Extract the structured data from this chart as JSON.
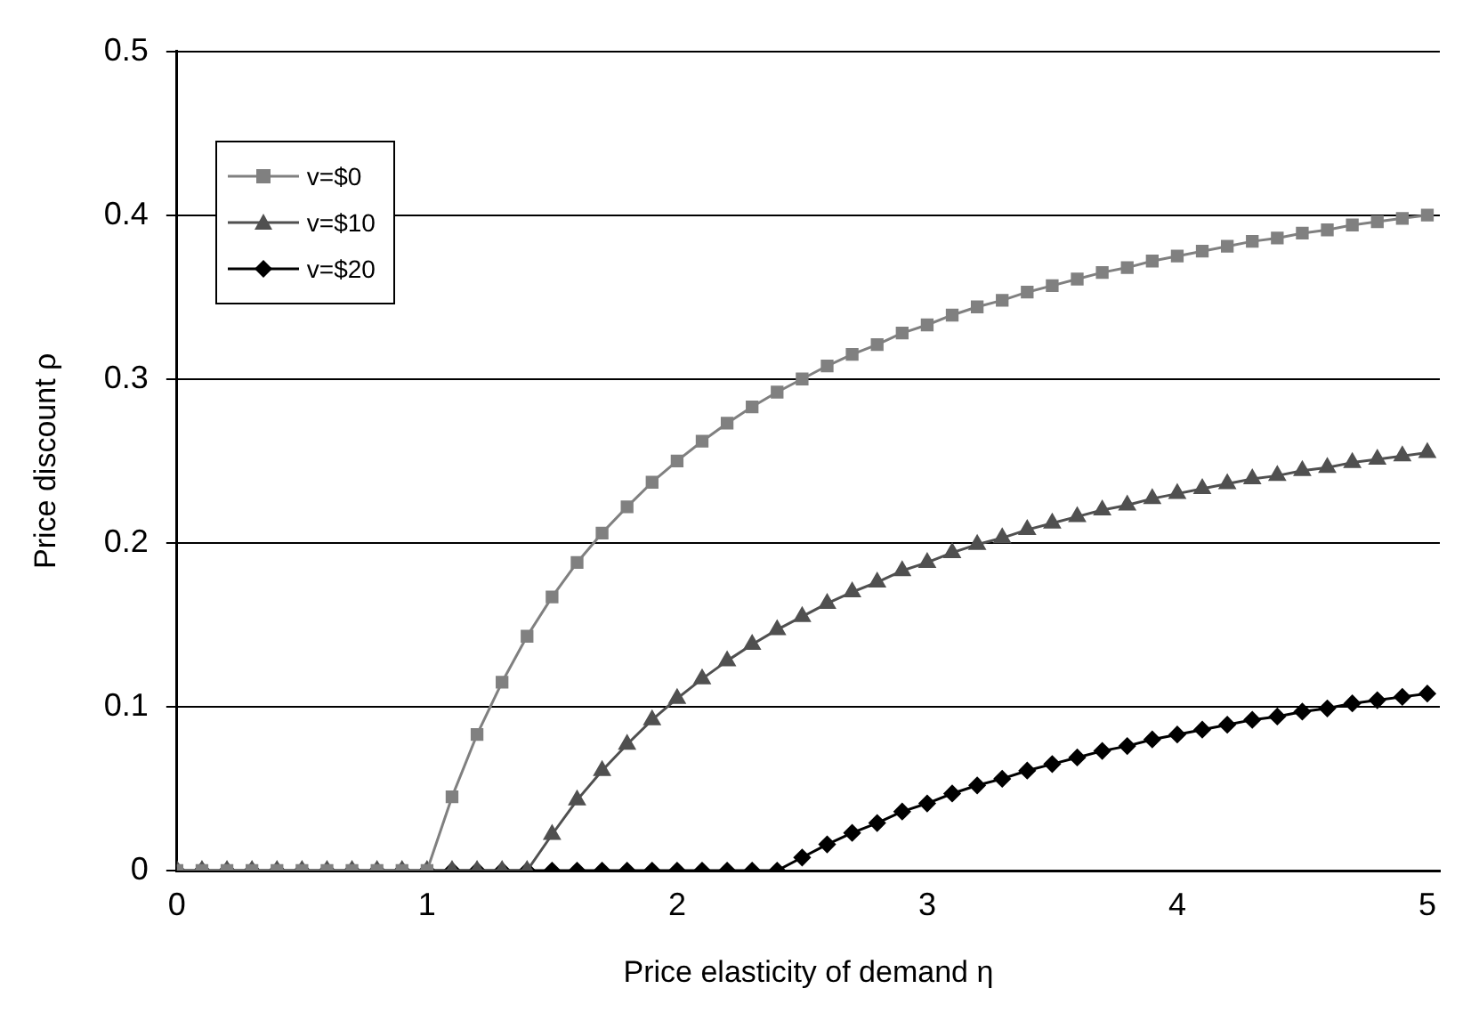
{
  "chart_data": {
    "type": "line",
    "xlabel": "Price elasticity of demand η",
    "ylabel": "Price discount ρ",
    "x": [
      0,
      0.1,
      0.2,
      0.3,
      0.4,
      0.5,
      0.6,
      0.7,
      0.8,
      0.9,
      1,
      1.1,
      1.2,
      1.3,
      1.4,
      1.5,
      1.6,
      1.7,
      1.8,
      1.9,
      2,
      2.1,
      2.2,
      2.3,
      2.4,
      2.5,
      2.6,
      2.7,
      2.8,
      2.9,
      3,
      3.1,
      3.2,
      3.3,
      3.4,
      3.5,
      3.6,
      3.7,
      3.8,
      3.9,
      4,
      4.1,
      4.2,
      4.3,
      4.4,
      4.5,
      4.6,
      4.7,
      4.8,
      4.9,
      5
    ],
    "series": [
      {
        "name": "v=$0",
        "color": "#808080",
        "marker": "square",
        "values": [
          0,
          0,
          0,
          0,
          0,
          0,
          0,
          0,
          0,
          0,
          0,
          0.045,
          0.083,
          0.115,
          0.143,
          0.167,
          0.188,
          0.206,
          0.222,
          0.237,
          0.25,
          0.262,
          0.273,
          0.283,
          0.292,
          0.3,
          0.308,
          0.315,
          0.321,
          0.328,
          0.333,
          0.339,
          0.344,
          0.348,
          0.353,
          0.357,
          0.361,
          0.365,
          0.368,
          0.372,
          0.375,
          0.378,
          0.381,
          0.384,
          0.386,
          0.389,
          0.391,
          0.394,
          0.396,
          0.398,
          0.4
        ]
      },
      {
        "name": "v=$10",
        "color": "#505050",
        "marker": "triangle",
        "values": [
          0,
          0,
          0,
          0,
          0,
          0,
          0,
          0,
          0,
          0,
          0,
          0,
          0,
          0,
          0,
          0.022,
          0.043,
          0.061,
          0.077,
          0.092,
          0.105,
          0.117,
          0.128,
          0.138,
          0.147,
          0.155,
          0.163,
          0.17,
          0.176,
          0.183,
          0.188,
          0.194,
          0.199,
          0.203,
          0.208,
          0.212,
          0.216,
          0.22,
          0.223,
          0.227,
          0.23,
          0.233,
          0.236,
          0.239,
          0.241,
          0.244,
          0.246,
          0.249,
          0.251,
          0.253,
          0.255
        ]
      },
      {
        "name": "v=$20",
        "color": "#000000",
        "marker": "diamond",
        "values": [
          0,
          0,
          0,
          0,
          0,
          0,
          0,
          0,
          0,
          0,
          0,
          0,
          0,
          0,
          0,
          0,
          0,
          0,
          0,
          0,
          0,
          0,
          0,
          0,
          0,
          0.008,
          0.016,
          0.023,
          0.029,
          0.036,
          0.041,
          0.047,
          0.052,
          0.056,
          0.061,
          0.065,
          0.069,
          0.073,
          0.076,
          0.08,
          0.083,
          0.086,
          0.089,
          0.092,
          0.094,
          0.097,
          0.099,
          0.102,
          0.104,
          0.106,
          0.108
        ]
      }
    ],
    "xlim": [
      0,
      5.05
    ],
    "xticks": [
      0,
      1,
      2,
      3,
      4,
      5
    ],
    "ylim": [
      0,
      0.5
    ],
    "yticks": [
      0,
      0.1,
      0.2,
      0.3,
      0.4,
      0.5
    ],
    "grid": "y",
    "legend": "top left",
    "line_style": "solid"
  }
}
